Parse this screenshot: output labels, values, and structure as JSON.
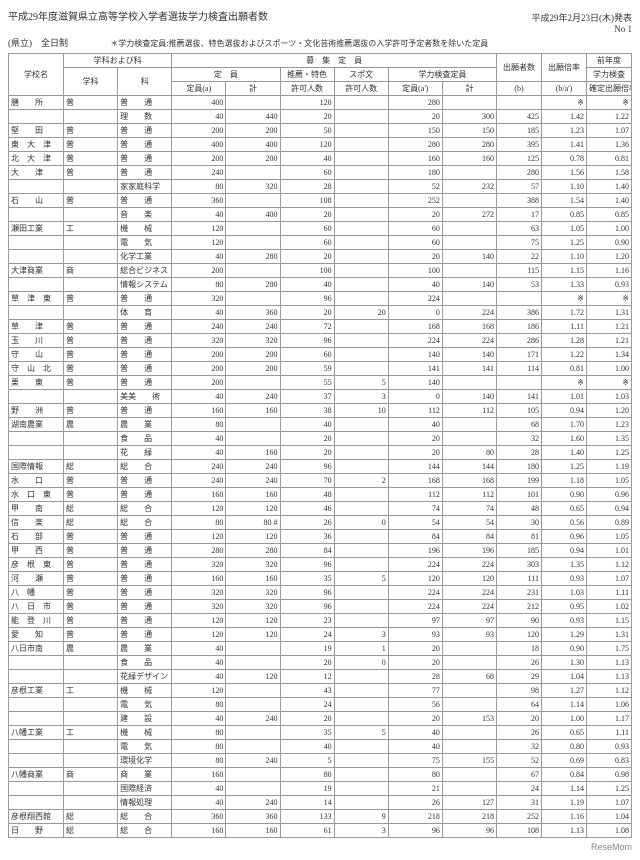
{
  "header": {
    "title": "平成29年度滋賀県立高等学校入学者選抜学力検査出願者数",
    "date": "平成29年2月23日(木)発表",
    "no": "No 1",
    "left": "(県立)　全日制",
    "note": "＊学力検査定員:推薦選抜、特色選抜およびスポーツ・文化芸術推薦選抜の入学許可予定者数を除いた定員"
  },
  "columns": {
    "school": "学校名",
    "dept_section": "学科および科",
    "dept": "学科",
    "subj": "科",
    "capacity": "募　集　定　員",
    "teiin": "定　員",
    "teiin_a": "定員(a)",
    "kei": "計",
    "suisen": "推薦・特色",
    "suisen_sub": "許可人数",
    "spobun": "スポ文",
    "spobun_sub": "許可人数",
    "gakuryoku": "学力検査定員",
    "teiin_a2": "定員(a')",
    "applicants": "出願者数",
    "app_b": "(b)",
    "ratio": "出願倍率",
    "ratio_sub": "(b/a')",
    "prev": "前年度",
    "prev_sub": "学力検査",
    "prev_sub2": "確定出願倍率"
  },
  "rows": [
    {
      "sc": "膳　　所",
      "d": "普",
      "s": "普　　通",
      "a": "400",
      "ak": "",
      "su": "120",
      "sp": "",
      "a2": "280",
      "a2k": "",
      "b": "",
      "r": "※",
      "pr": "※"
    },
    {
      "sc": "",
      "d": "",
      "s": "理　　数",
      "a": "40",
      "ak": "440",
      "su": "20",
      "sp": "",
      "a2": "20",
      "a2k": "300",
      "b": "425",
      "r": "1.42",
      "pr": "1.22"
    },
    {
      "sc": "堅　　田",
      "d": "普",
      "s": "普　　通",
      "a": "200",
      "ak": "200",
      "su": "50",
      "sp": "",
      "a2": "150",
      "a2k": "150",
      "b": "185",
      "r": "1.23",
      "pr": "1.07"
    },
    {
      "sc": "東　大　津",
      "d": "普",
      "s": "普　　通",
      "a": "400",
      "ak": "400",
      "su": "120",
      "sp": "",
      "a2": "280",
      "a2k": "280",
      "b": "395",
      "r": "1.41",
      "pr": "1.36"
    },
    {
      "sc": "北　大　津",
      "d": "普",
      "s": "普　　通",
      "a": "200",
      "ak": "200",
      "su": "40",
      "sp": "",
      "a2": "160",
      "a2k": "160",
      "b": "125",
      "r": "0.78",
      "pr": "0.81"
    },
    {
      "sc": "大　　津",
      "d": "普",
      "s": "普　　通",
      "a": "240",
      "ak": "",
      "su": "60",
      "sp": "",
      "a2": "180",
      "a2k": "",
      "b": "280",
      "r": "1.56",
      "pr": "1.58"
    },
    {
      "sc": "",
      "d": "",
      "s": "家家庭科学",
      "a": "80",
      "ak": "320",
      "su": "28",
      "sp": "",
      "a2": "52",
      "a2k": "232",
      "b": "57",
      "r": "1.10",
      "pr": "1.40"
    },
    {
      "sc": "石　　山",
      "d": "普",
      "s": "普　　通",
      "a": "360",
      "ak": "",
      "su": "108",
      "sp": "",
      "a2": "252",
      "a2k": "",
      "b": "388",
      "r": "1.54",
      "pr": "1.40"
    },
    {
      "sc": "",
      "d": "",
      "s": "音　　楽",
      "a": "40",
      "ak": "400",
      "su": "20",
      "sp": "",
      "a2": "20",
      "a2k": "272",
      "b": "17",
      "r": "0.85",
      "pr": "0.85"
    },
    {
      "sc": "瀬田工業",
      "d": "工",
      "s": "機　　械",
      "a": "120",
      "ak": "",
      "su": "60",
      "sp": "",
      "a2": "60",
      "a2k": "",
      "b": "63",
      "r": "1.05",
      "pr": "1.00"
    },
    {
      "sc": "",
      "d": "",
      "s": "電　　気",
      "a": "120",
      "ak": "",
      "su": "60",
      "sp": "",
      "a2": "60",
      "a2k": "",
      "b": "75",
      "r": "1.25",
      "pr": "0.90"
    },
    {
      "sc": "",
      "d": "",
      "s": "化学工業",
      "a": "40",
      "ak": "280",
      "su": "20",
      "sp": "",
      "a2": "20",
      "a2k": "140",
      "b": "22",
      "r": "1.10",
      "pr": "1.20"
    },
    {
      "sc": "大津商業",
      "d": "商",
      "s": "総合ビジネス",
      "a": "200",
      "ak": "",
      "su": "100",
      "sp": "",
      "a2": "100",
      "a2k": "",
      "b": "115",
      "r": "1.15",
      "pr": "1.16"
    },
    {
      "sc": "",
      "d": "",
      "s": "情報システム",
      "a": "80",
      "ak": "280",
      "su": "40",
      "sp": "",
      "a2": "40",
      "a2k": "140",
      "b": "53",
      "r": "1.33",
      "pr": "0.93"
    },
    {
      "sc": "草　津　東",
      "d": "普",
      "s": "普　　通",
      "a": "320",
      "ak": "",
      "su": "96",
      "sp": "",
      "a2": "224",
      "a2k": "",
      "b": "",
      "r": "※",
      "pr": "※"
    },
    {
      "sc": "",
      "d": "",
      "s": "体　　育",
      "a": "40",
      "ak": "360",
      "su": "20",
      "sp": "20",
      "a2": "0",
      "a2k": "224",
      "b": "386",
      "r": "1.72",
      "pr": "1.31"
    },
    {
      "sc": "草　　津",
      "d": "普",
      "s": "普　　通",
      "a": "240",
      "ak": "240",
      "su": "72",
      "sp": "",
      "a2": "168",
      "a2k": "168",
      "b": "186",
      "r": "1.11",
      "pr": "1.21"
    },
    {
      "sc": "玉　　川",
      "d": "普",
      "s": "普　　通",
      "a": "320",
      "ak": "320",
      "su": "96",
      "sp": "",
      "a2": "224",
      "a2k": "224",
      "b": "286",
      "r": "1.28",
      "pr": "1.21"
    },
    {
      "sc": "守　　山",
      "d": "普",
      "s": "普　　通",
      "a": "200",
      "ak": "200",
      "su": "60",
      "sp": "",
      "a2": "140",
      "a2k": "140",
      "b": "171",
      "r": "1.22",
      "pr": "1.34"
    },
    {
      "sc": "守　山　北",
      "d": "普",
      "s": "普　　通",
      "a": "200",
      "ak": "200",
      "su": "59",
      "sp": "",
      "a2": "141",
      "a2k": "141",
      "b": "114",
      "r": "0.81",
      "pr": "1.00"
    },
    {
      "sc": "栗　　東",
      "d": "普",
      "s": "普　　通",
      "a": "200",
      "ak": "",
      "su": "55",
      "sp": "5",
      "a2": "140",
      "a2k": "",
      "b": "",
      "r": "※",
      "pr": "※"
    },
    {
      "sc": "",
      "d": "",
      "s": "美美　　術",
      "a": "40",
      "ak": "240",
      "su": "37",
      "sp": "3",
      "a2": "0",
      "a2k": "140",
      "b": "141",
      "r": "1.01",
      "pr": "1.03"
    },
    {
      "sc": "野　　洲",
      "d": "普",
      "s": "普　　通",
      "a": "160",
      "ak": "160",
      "su": "38",
      "sp": "10",
      "a2": "112",
      "a2k": "112",
      "b": "105",
      "r": "0.94",
      "pr": "1.20"
    },
    {
      "sc": "湖南農業",
      "d": "農",
      "s": "農　　業",
      "a": "80",
      "ak": "",
      "su": "40",
      "sp": "",
      "a2": "40",
      "a2k": "",
      "b": "68",
      "r": "1.70",
      "pr": "1.23"
    },
    {
      "sc": "",
      "d": "",
      "s": "食　　品",
      "a": "40",
      "ak": "",
      "su": "20",
      "sp": "",
      "a2": "20",
      "a2k": "",
      "b": "32",
      "r": "1.60",
      "pr": "1.35"
    },
    {
      "sc": "",
      "d": "",
      "s": "花　　緑",
      "a": "40",
      "ak": "160",
      "su": "20",
      "sp": "",
      "a2": "20",
      "a2k": "80",
      "b": "28",
      "r": "1.40",
      "pr": "1.25"
    },
    {
      "sc": "国際情報",
      "d": "総",
      "s": "総　　合",
      "a": "240",
      "ak": "240",
      "su": "96",
      "sp": "",
      "a2": "144",
      "a2k": "144",
      "b": "180",
      "r": "1.25",
      "pr": "1.19"
    },
    {
      "sc": "水　　口",
      "d": "普",
      "s": "普　　通",
      "a": "240",
      "ak": "240",
      "su": "70",
      "sp": "2",
      "a2": "168",
      "a2k": "168",
      "b": "199",
      "r": "1.18",
      "pr": "1.05"
    },
    {
      "sc": "水　口　東",
      "d": "普",
      "s": "普　　通",
      "a": "160",
      "ak": "160",
      "su": "48",
      "sp": "",
      "a2": "112",
      "a2k": "112",
      "b": "101",
      "r": "0.90",
      "pr": "0.96"
    },
    {
      "sc": "甲　　南",
      "d": "総",
      "s": "総　　合",
      "a": "120",
      "ak": "120",
      "su": "46",
      "sp": "",
      "a2": "74",
      "a2k": "74",
      "b": "48",
      "r": "0.65",
      "pr": "0.94"
    },
    {
      "sc": "信　　楽",
      "d": "総",
      "s": "総　　合",
      "a": "80",
      "ak": "80 #",
      "su": "26",
      "sp": "0",
      "a2": "54",
      "a2k": "54",
      "b": "30",
      "r": "0.56",
      "pr": "0.89"
    },
    {
      "sc": "石　　部",
      "d": "普",
      "s": "普　　通",
      "a": "120",
      "ak": "120",
      "su": "36",
      "sp": "",
      "a2": "84",
      "a2k": "84",
      "b": "81",
      "r": "0.96",
      "pr": "1.05"
    },
    {
      "sc": "甲　　西",
      "d": "普",
      "s": "普　　通",
      "a": "280",
      "ak": "280",
      "su": "84",
      "sp": "",
      "a2": "196",
      "a2k": "196",
      "b": "185",
      "r": "0.94",
      "pr": "1.01"
    },
    {
      "sc": "彦　根　東",
      "d": "普",
      "s": "普　　通",
      "a": "320",
      "ak": "320",
      "su": "96",
      "sp": "",
      "a2": "224",
      "a2k": "224",
      "b": "303",
      "r": "1.35",
      "pr": "1.12"
    },
    {
      "sc": "河　　瀬",
      "d": "普",
      "s": "普　　通",
      "a": "160",
      "ak": "160",
      "su": "35",
      "sp": "5",
      "a2": "120",
      "a2k": "120",
      "b": "111",
      "r": "0.93",
      "pr": "1.07"
    },
    {
      "sc": "八　幡",
      "d": "普",
      "s": "普　　通",
      "a": "320",
      "ak": "320",
      "su": "96",
      "sp": "",
      "a2": "224",
      "a2k": "224",
      "b": "231",
      "r": "1.03",
      "pr": "1.11"
    },
    {
      "sc": "八　日　市",
      "d": "普",
      "s": "普　　通",
      "a": "320",
      "ak": "320",
      "su": "96",
      "sp": "",
      "a2": "224",
      "a2k": "224",
      "b": "212",
      "r": "0.95",
      "pr": "1.02"
    },
    {
      "sc": "能　登　川",
      "d": "普",
      "s": "普　　通",
      "a": "120",
      "ak": "120",
      "su": "23",
      "sp": "",
      "a2": "97",
      "a2k": "97",
      "b": "90",
      "r": "0.93",
      "pr": "1.15"
    },
    {
      "sc": "愛　　知",
      "d": "普",
      "s": "普　　通",
      "a": "120",
      "ak": "120",
      "su": "24",
      "sp": "3",
      "a2": "93",
      "a2k": "93",
      "b": "120",
      "r": "1.29",
      "pr": "1.31"
    },
    {
      "sc": "八日市南",
      "d": "農",
      "s": "農　　業",
      "a": "40",
      "ak": "",
      "su": "19",
      "sp": "1",
      "a2": "20",
      "a2k": "",
      "b": "18",
      "r": "0.90",
      "pr": "1.75"
    },
    {
      "sc": "",
      "d": "",
      "s": "食　　品",
      "a": "40",
      "ak": "",
      "su": "20",
      "sp": "0",
      "a2": "20",
      "a2k": "",
      "b": "26",
      "r": "1.30",
      "pr": "1.13"
    },
    {
      "sc": "",
      "d": "",
      "s": "花緑デザイン",
      "a": "40",
      "ak": "120",
      "su": "12",
      "sp": "",
      "a2": "28",
      "a2k": "68",
      "b": "29",
      "r": "1.04",
      "pr": "1.13"
    },
    {
      "sc": "彦根工業",
      "d": "工",
      "s": "機　　械",
      "a": "120",
      "ak": "",
      "su": "43",
      "sp": "",
      "a2": "77",
      "a2k": "",
      "b": "98",
      "r": "1.27",
      "pr": "1.12"
    },
    {
      "sc": "",
      "d": "",
      "s": "電　　気",
      "a": "80",
      "ak": "",
      "su": "24",
      "sp": "",
      "a2": "56",
      "a2k": "",
      "b": "64",
      "r": "1.14",
      "pr": "1.06"
    },
    {
      "sc": "",
      "d": "",
      "s": "建　　設",
      "a": "40",
      "ak": "240",
      "su": "20",
      "sp": "",
      "a2": "20",
      "a2k": "153",
      "b": "20",
      "r": "1.00",
      "pr": "1.17"
    },
    {
      "sc": "八幡工業",
      "d": "工",
      "s": "機　　械",
      "a": "80",
      "ak": "",
      "su": "35",
      "sp": "5",
      "a2": "40",
      "a2k": "",
      "b": "26",
      "r": "0.65",
      "pr": "1.11"
    },
    {
      "sc": "",
      "d": "",
      "s": "電　　気",
      "a": "80",
      "ak": "",
      "su": "40",
      "sp": "",
      "a2": "40",
      "a2k": "",
      "b": "32",
      "r": "0.80",
      "pr": "0.93"
    },
    {
      "sc": "",
      "d": "",
      "s": "環境化学",
      "a": "80",
      "ak": "240",
      "su": "5",
      "sp": "",
      "a2": "75",
      "a2k": "155",
      "b": "52",
      "r": "0.69",
      "pr": "0.83"
    },
    {
      "sc": "八幡商業",
      "d": "商",
      "s": "商　　業",
      "a": "160",
      "ak": "",
      "su": "80",
      "sp": "",
      "a2": "80",
      "a2k": "",
      "b": "67",
      "r": "0.84",
      "pr": "0.98"
    },
    {
      "sc": "",
      "d": "",
      "s": "国際経済",
      "a": "40",
      "ak": "",
      "su": "19",
      "sp": "",
      "a2": "21",
      "a2k": "",
      "b": "24",
      "r": "1.14",
      "pr": "1.25"
    },
    {
      "sc": "",
      "d": "",
      "s": "情報処理",
      "a": "40",
      "ak": "240",
      "su": "14",
      "sp": "",
      "a2": "26",
      "a2k": "127",
      "b": "31",
      "r": "1.19",
      "pr": "1.07"
    },
    {
      "sc": "彦根翔西館",
      "d": "総",
      "s": "総　　合",
      "a": "360",
      "ak": "360",
      "su": "133",
      "sp": "9",
      "a2": "218",
      "a2k": "218",
      "b": "252",
      "r": "1.16",
      "pr": "1.04"
    },
    {
      "sc": "日　　野",
      "d": "総",
      "s": "総　　合",
      "a": "160",
      "ak": "160",
      "su": "61",
      "sp": "3",
      "a2": "96",
      "a2k": "96",
      "b": "108",
      "r": "1.13",
      "pr": "1.08"
    }
  ],
  "footer": "ReseMom"
}
